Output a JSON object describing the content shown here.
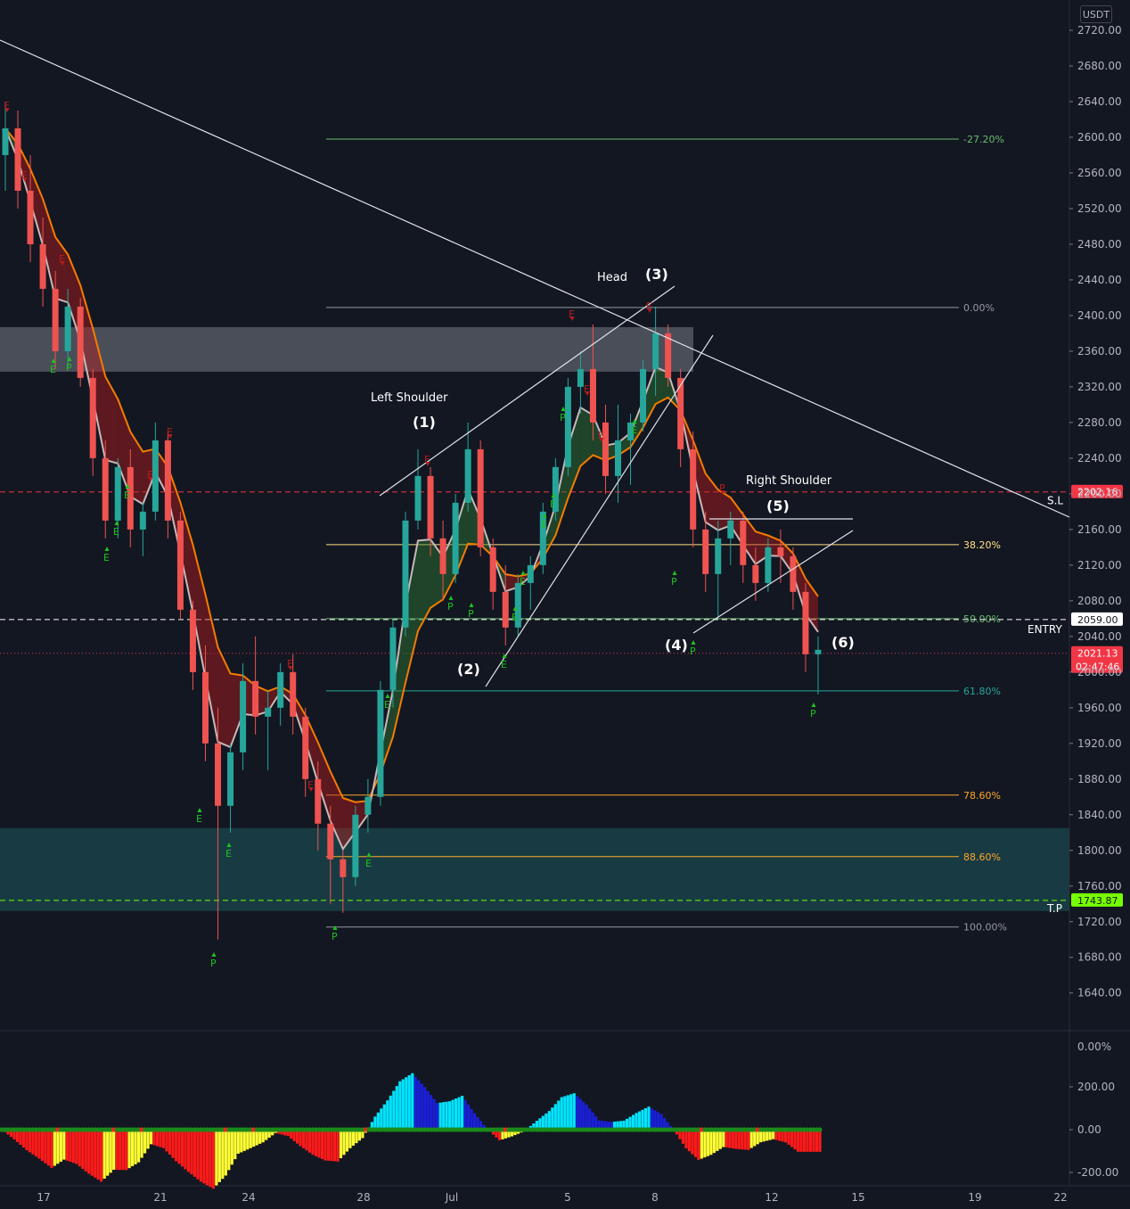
{
  "chart_data": {
    "type": "candlestick",
    "currency": "USDT",
    "price_axis": {
      "ticks": [
        "2720.00",
        "2680.00",
        "2640.00",
        "2600.00",
        "2560.00",
        "2520.00",
        "2480.00",
        "2440.00",
        "2400.00",
        "2360.00",
        "2320.00",
        "2280.00",
        "2240.00",
        "2200.00",
        "2160.00",
        "2120.00",
        "2080.00",
        "2040.00",
        "2000.00",
        "1960.00",
        "1920.00",
        "1880.00",
        "1840.00",
        "1800.00",
        "1760.00",
        "1720.00",
        "1680.00",
        "1640.00"
      ],
      "range": [
        1610,
        2735
      ]
    },
    "time_axis": {
      "ticks": [
        "17",
        "21",
        "24",
        "28",
        "Jul",
        "5",
        "8",
        "12",
        "15",
        "19",
        "22"
      ]
    },
    "candles_ohlc": [
      [
        2580,
        2640,
        2540,
        2610
      ],
      [
        2610,
        2630,
        2520,
        2540
      ],
      [
        2540,
        2580,
        2460,
        2480
      ],
      [
        2480,
        2510,
        2410,
        2430
      ],
      [
        2430,
        2450,
        2340,
        2360
      ],
      [
        2360,
        2430,
        2340,
        2410
      ],
      [
        2410,
        2420,
        2320,
        2330
      ],
      [
        2330,
        2340,
        2220,
        2240
      ],
      [
        2240,
        2260,
        2150,
        2170
      ],
      [
        2170,
        2240,
        2150,
        2230
      ],
      [
        2230,
        2250,
        2140,
        2160
      ],
      [
        2160,
        2190,
        2130,
        2180
      ],
      [
        2180,
        2280,
        2170,
        2260
      ],
      [
        2260,
        2270,
        2150,
        2170
      ],
      [
        2170,
        2180,
        2060,
        2070
      ],
      [
        2070,
        2080,
        1980,
        2000
      ],
      [
        2000,
        2030,
        1900,
        1920
      ],
      [
        1920,
        1960,
        1700,
        1850
      ],
      [
        1850,
        1920,
        1820,
        1910
      ],
      [
        1910,
        2010,
        1890,
        1990
      ],
      [
        1990,
        2040,
        1930,
        1950
      ],
      [
        1950,
        1980,
        1890,
        1960
      ],
      [
        1960,
        2010,
        1940,
        2000
      ],
      [
        2000,
        2020,
        1930,
        1950
      ],
      [
        1950,
        1960,
        1860,
        1880
      ],
      [
        1880,
        1900,
        1800,
        1830
      ],
      [
        1830,
        1850,
        1740,
        1790
      ],
      [
        1790,
        1800,
        1730,
        1770
      ],
      [
        1770,
        1850,
        1760,
        1840
      ],
      [
        1840,
        1880,
        1820,
        1860
      ],
      [
        1860,
        1990,
        1850,
        1980
      ],
      [
        1980,
        2060,
        1960,
        2050
      ],
      [
        2050,
        2180,
        2040,
        2170
      ],
      [
        2170,
        2250,
        2160,
        2220
      ],
      [
        2220,
        2230,
        2130,
        2150
      ],
      [
        2150,
        2170,
        2080,
        2110
      ],
      [
        2110,
        2200,
        2100,
        2190
      ],
      [
        2190,
        2280,
        2180,
        2250
      ],
      [
        2250,
        2260,
        2130,
        2140
      ],
      [
        2140,
        2150,
        2070,
        2090
      ],
      [
        2090,
        2120,
        2030,
        2050
      ],
      [
        2050,
        2110,
        2040,
        2100
      ],
      [
        2100,
        2130,
        2070,
        2120
      ],
      [
        2120,
        2190,
        2110,
        2180
      ],
      [
        2180,
        2240,
        2170,
        2230
      ],
      [
        2230,
        2330,
        2220,
        2320
      ],
      [
        2320,
        2360,
        2290,
        2340
      ],
      [
        2340,
        2390,
        2260,
        2280
      ],
      [
        2280,
        2300,
        2200,
        2220
      ],
      [
        2220,
        2300,
        2190,
        2260
      ],
      [
        2260,
        2290,
        2210,
        2280
      ],
      [
        2280,
        2350,
        2270,
        2340
      ],
      [
        2340,
        2410,
        2310,
        2380
      ],
      [
        2380,
        2390,
        2320,
        2330
      ],
      [
        2330,
        2340,
        2230,
        2250
      ],
      [
        2250,
        2270,
        2140,
        2160
      ],
      [
        2160,
        2180,
        2090,
        2110
      ],
      [
        2110,
        2170,
        2060,
        2150
      ],
      [
        2150,
        2180,
        2120,
        2170
      ],
      [
        2170,
        2180,
        2100,
        2120
      ],
      [
        2120,
        2140,
        2080,
        2100
      ],
      [
        2100,
        2150,
        2090,
        2140
      ],
      [
        2140,
        2160,
        2100,
        2130
      ],
      [
        2130,
        2140,
        2070,
        2090
      ],
      [
        2090,
        2100,
        2000,
        2020
      ],
      [
        2020,
        2040,
        1975,
        2025
      ]
    ],
    "moving_averages": [
      {
        "name": "fast",
        "color": "#c9b8b8"
      },
      {
        "name": "slow",
        "color": "#f57c00"
      }
    ],
    "horizontal_levels": [
      {
        "label": "S.L",
        "price": 2202.16,
        "tag": "2202.16",
        "color": "#f23645",
        "style": "dashed"
      },
      {
        "label": "ENTRY",
        "price": 2059.0,
        "tag": "2059.00",
        "color": "#ffffff",
        "style": "dashed"
      },
      {
        "label": "T.P",
        "price": 1743.87,
        "tag": "1743.87",
        "color": "#76ff03",
        "style": "dashed"
      },
      {
        "label": "",
        "price": 2021.13,
        "tag": "2021.13",
        "countdown": "02:47:46",
        "color": "#f23645",
        "style": "dotted"
      }
    ],
    "fibonacci": [
      {
        "label": "-27.20%",
        "price": 2598,
        "color": "#66bb6a"
      },
      {
        "label": "0.00%",
        "price": 2409,
        "color": "#9598a1"
      },
      {
        "label": "38.20%",
        "price": 2143,
        "color": "#ffe082"
      },
      {
        "label": "50.00%",
        "price": 2060,
        "color": "#66bb6a"
      },
      {
        "label": "61.80%",
        "price": 1979,
        "color": "#26a69a"
      },
      {
        "label": "78.60%",
        "price": 1862,
        "color": "#ffa726"
      },
      {
        "label": "88.60%",
        "price": 1793,
        "color": "#ffa726"
      },
      {
        "label": "100.00%",
        "price": 1714,
        "color": "#9598a1"
      }
    ],
    "zones": [
      {
        "name": "supply",
        "top": 2387,
        "bottom": 2337,
        "color": "#787b86"
      },
      {
        "name": "demand",
        "top": 1825,
        "bottom": 1732,
        "color": "#1e5a5e"
      }
    ],
    "annotations": {
      "left_shoulder": "Left Shoulder",
      "head": "Head",
      "right_shoulder": "Right Shoulder",
      "waves": [
        "(1)",
        "(2)",
        "(3)",
        "(4)",
        "(5)",
        "(6)"
      ],
      "entry_label": "ENTRY",
      "sl_label": "S.L",
      "tp_label": "T.P"
    },
    "signal_marks": {
      "E": "E",
      "P": "P"
    },
    "oscillator": {
      "ticks": [
        "200.00",
        "0.00",
        "-200.00"
      ],
      "pane_label": "0.00%",
      "range": [
        -260,
        260
      ],
      "colors": {
        "pos_strong": "#00e5ff",
        "pos_weak": "#1a1fd8",
        "neg_strong": "#ff1a1a",
        "neg_weak": "#ffff33",
        "dot_green": "#1b8a1b",
        "dot_red": "#ff2020"
      }
    }
  }
}
